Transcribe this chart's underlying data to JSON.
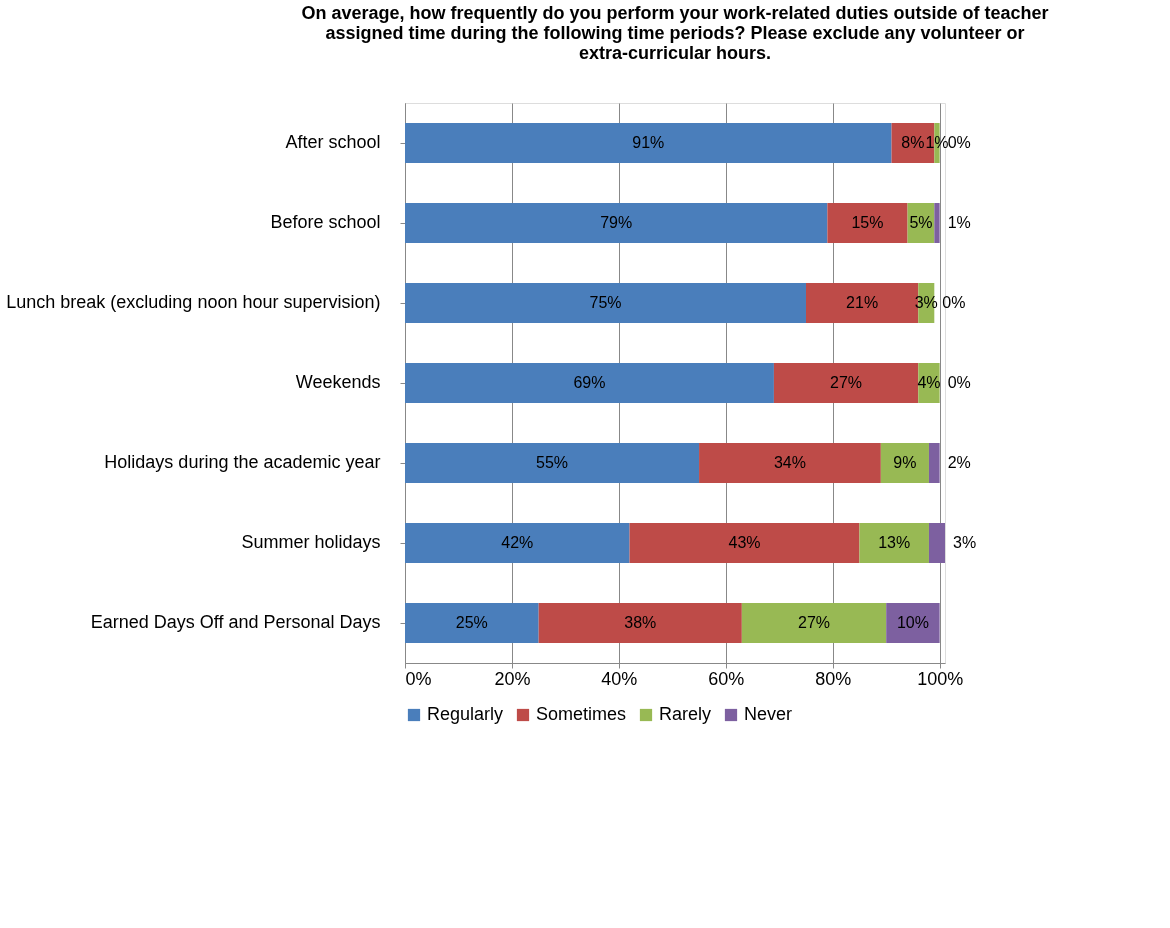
{
  "chart_data": {
    "type": "bar",
    "orientation": "horizontal",
    "stacked": true,
    "title": "On average, how frequently do you perform your work-related duties outside of teacher assigned time during the following time periods?  Please exclude any volunteer or extra-curricular hours.",
    "categories": [
      "After school",
      "Before school",
      "Lunch break (excluding noon hour supervision)",
      "Weekends",
      "Holidays during the academic year",
      "Summer holidays",
      "Earned Days Off and Personal Days"
    ],
    "series": [
      {
        "name": "Regularly",
        "color": "#4a7ebb",
        "values": [
          91,
          79,
          75,
          69,
          55,
          42,
          25
        ],
        "value_labels": [
          "91%",
          "79%",
          "75%",
          "69%",
          "55%",
          "42%",
          "25%"
        ]
      },
      {
        "name": "Sometimes",
        "color": "#be4b48",
        "values": [
          8,
          15,
          21,
          27,
          34,
          43,
          38
        ],
        "value_labels": [
          "8%",
          "15%",
          "21%",
          "27%",
          "34%",
          "43%",
          "38%"
        ]
      },
      {
        "name": "Rarely",
        "color": "#98b954",
        "values": [
          1,
          5,
          3,
          4,
          9,
          13,
          27
        ],
        "value_labels": [
          "1%",
          "5%",
          "3%",
          "4%",
          "9%",
          "13%",
          "27%"
        ]
      },
      {
        "name": "Never",
        "color": "#7d60a0",
        "values": [
          0,
          1,
          0,
          0,
          2,
          3,
          10
        ],
        "value_labels": [
          "0%",
          "1%",
          "0%",
          "0%",
          "2%",
          "3%",
          "10%"
        ]
      }
    ],
    "xlim": [
      0,
      101
    ],
    "xticks": [
      {
        "value": 0,
        "label": "0%"
      },
      {
        "value": 20,
        "label": "20%"
      },
      {
        "value": 40,
        "label": "40%"
      },
      {
        "value": 60,
        "label": "60%"
      },
      {
        "value": 80,
        "label": "80%"
      },
      {
        "value": 100,
        "label": "100%"
      }
    ],
    "grid": "x",
    "legend": "bottom"
  }
}
